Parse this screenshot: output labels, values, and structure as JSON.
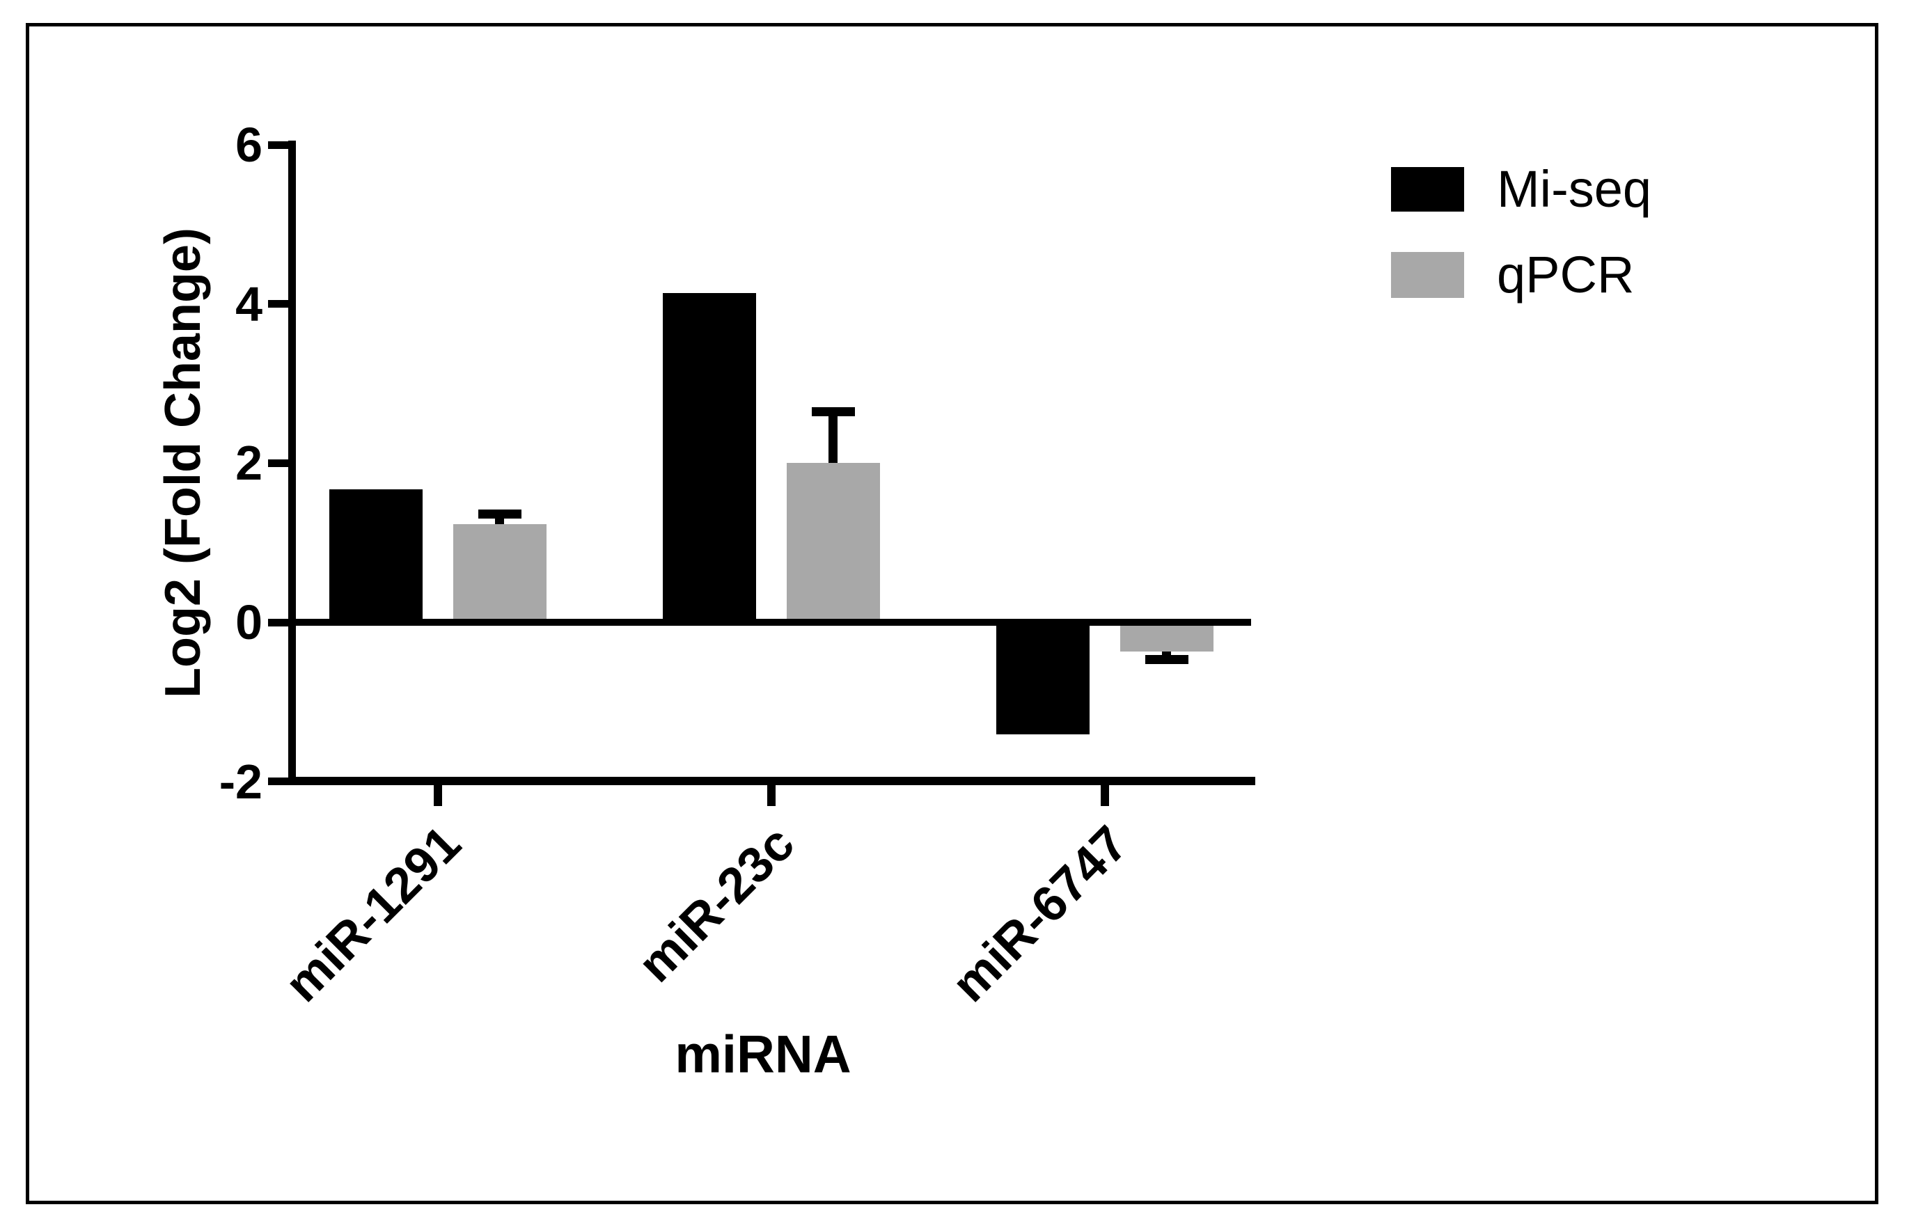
{
  "figure": {
    "background_color": "#ffffff",
    "frame_color": "#000000"
  },
  "chart_data": {
    "type": "bar",
    "title": "",
    "xlabel": "miRNA",
    "ylabel": "Log2 (Fold Change)",
    "categories": [
      "miR-1291",
      "miR-23c",
      "miR-6747"
    ],
    "series": [
      {
        "name": "Mi-seq",
        "color": "#000000",
        "values": [
          1.67,
          4.14,
          -1.41
        ]
      },
      {
        "name": "qPCR",
        "color": "#a8a8a8",
        "values": [
          1.23,
          2.0,
          -0.37
        ],
        "errors": [
          0.13,
          0.65,
          0.1
        ]
      }
    ],
    "ylim": [
      -2,
      6
    ],
    "yticks": [
      6,
      4,
      2,
      0,
      -2
    ],
    "grid": false,
    "legend_position": "upper right",
    "error_bar_color": "#000000"
  }
}
